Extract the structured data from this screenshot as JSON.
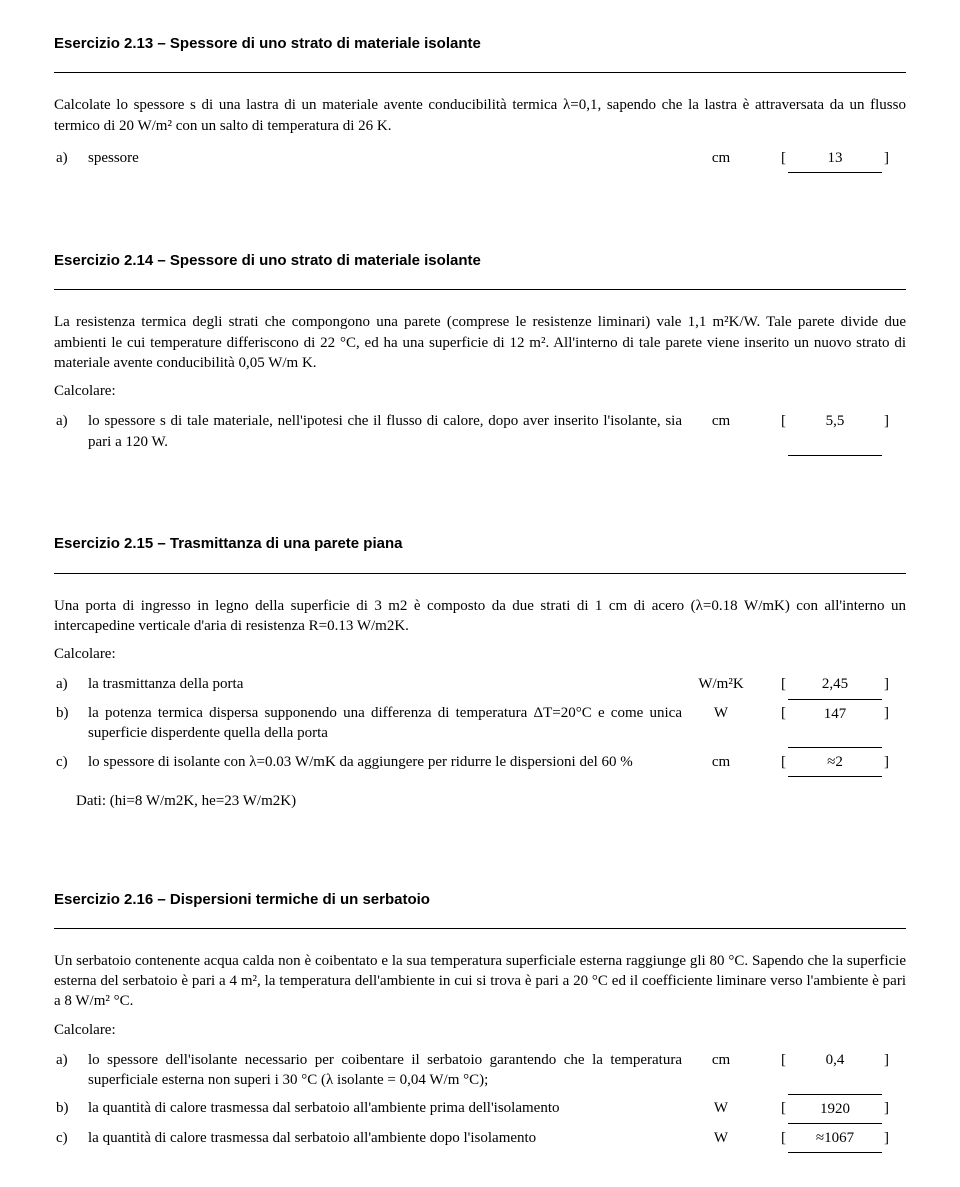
{
  "ex213": {
    "title": "Esercizio 2.13 – Spessore di uno strato di materiale isolante",
    "text": "Calcolate lo spessore s di una lastra di un materiale avente conducibilità termica λ=0,1, sapendo che la lastra è attraversata da un flusso termico di 20 W/m² con un salto di temperatura di 26 K.",
    "rows": [
      {
        "letter": "a)",
        "desc": "spessore",
        "unit": "cm",
        "val": "13"
      }
    ]
  },
  "ex214": {
    "title": "Esercizio 2.14 – Spessore di uno strato di materiale isolante",
    "text": "La resistenza termica degli strati che compongono una parete (comprese le resistenze liminari) vale 1,1 m²K/W. Tale parete divide due ambienti le cui temperature differiscono di 22 °C, ed ha una superficie di 12 m². All'interno di tale parete viene inserito un nuovo strato di materiale avente conducibilità 0,05 W/m K.",
    "calcolare": "Calcolare:",
    "rows": [
      {
        "letter": "a)",
        "desc": "lo spessore s di tale materiale, nell'ipotesi che il flusso di calore, dopo aver inserito l'isolante, sia pari a 120 W.",
        "unit": "cm",
        "val": "5,5"
      }
    ]
  },
  "ex215": {
    "title": "Esercizio 2.15 – Trasmittanza di una parete piana",
    "text": "Una porta di ingresso in legno della superficie di 3 m2 è composto da due strati di 1 cm di acero (λ=0.18 W/mK) con all'interno un intercapedine verticale d'aria di resistenza R=0.13 W/m2K.",
    "calcolare": "Calcolare:",
    "rows": [
      {
        "letter": "a)",
        "desc": "la trasmittanza della porta",
        "unit": "W/m²K",
        "val": "2,45"
      },
      {
        "letter": "b)",
        "desc": "la potenza termica dispersa supponendo una differenza di temperatura ΔT=20°C e come unica superficie disperdente quella della porta",
        "unit": "W",
        "val": "147"
      },
      {
        "letter": "c)",
        "desc": "lo spessore di isolante con λ=0.03 W/mK da aggiungere per ridurre le dispersioni del 60 %",
        "unit": "cm",
        "val": "≈2"
      }
    ],
    "dati": "Dati: (hi=8 W/m2K, he=23 W/m2K)"
  },
  "ex216": {
    "title": "Esercizio 2.16 – Dispersioni termiche di un serbatoio",
    "text": "Un serbatoio contenente acqua calda non è coibentato e la sua temperatura superficiale esterna raggiunge gli 80 °C. Sapendo che la superficie esterna del serbatoio è pari a 4 m², la temperatura dell'ambiente in cui si trova è pari a 20 °C ed il coefficiente liminare verso l'ambiente è pari a 8 W/m² °C.",
    "calcolare": "Calcolare:",
    "rows": [
      {
        "letter": "a)",
        "desc": "lo spessore dell'isolante necessario per coibentare il serbatoio garantendo che la temperatura superficiale esterna non superi i 30 °C (λ isolante = 0,04 W/m °C);",
        "unit": "cm",
        "val": "0,4"
      },
      {
        "letter": "b)",
        "desc": "la quantità di calore trasmessa dal serbatoio all'ambiente prima dell'isolamento",
        "unit": "W",
        "val": "1920"
      },
      {
        "letter": "c)",
        "desc": "la quantità di calore trasmessa dal serbatoio all'ambiente dopo l'isolamento",
        "unit": "W",
        "val": "≈1067"
      }
    ]
  }
}
